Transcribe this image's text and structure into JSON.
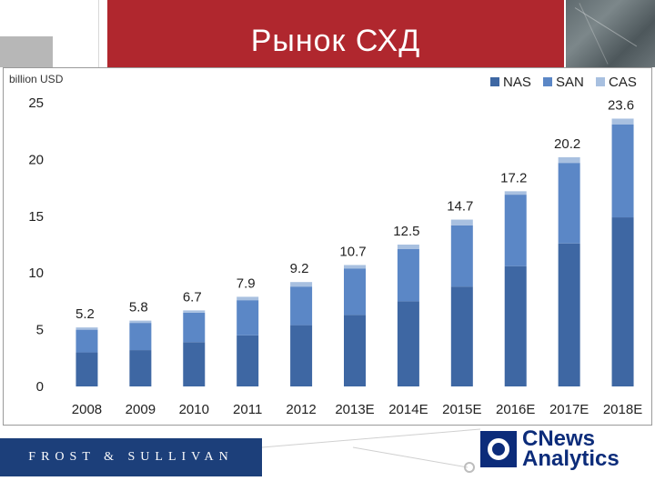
{
  "slide": {
    "title": "Рынок СХД",
    "footer_left": "FROST & SULLIVAN",
    "footer_right_line1": "CNews",
    "footer_right_line2": "Analytics"
  },
  "colors": {
    "title_band": "#b0272e",
    "frost_band": "#1c3f7a",
    "nas": "#3e67a3",
    "san": "#5b87c6",
    "cas": "#a8c0e0"
  },
  "chart_data": {
    "type": "bar",
    "stacked": true,
    "title": "",
    "units_label": "billion USD",
    "xlabel": "",
    "ylabel": "",
    "ylim": [
      0,
      25
    ],
    "yticks": [
      0,
      5,
      10,
      15,
      20,
      25
    ],
    "categories": [
      "2008",
      "2009",
      "2010",
      "2011",
      "2012",
      "2013Е",
      "2014Е",
      "2015Е",
      "2016Е",
      "2017Е",
      "2018Е"
    ],
    "series": [
      {
        "name": "NAS",
        "color": "#3e67a3",
        "values": [
          3.0,
          3.2,
          3.9,
          4.5,
          5.4,
          6.3,
          7.5,
          8.8,
          10.6,
          12.6,
          14.9
        ]
      },
      {
        "name": "SAN",
        "color": "#5b87c6",
        "values": [
          2.0,
          2.4,
          2.6,
          3.1,
          3.4,
          4.1,
          4.6,
          5.4,
          6.3,
          7.1,
          8.2
        ]
      },
      {
        "name": "CAS",
        "color": "#a8c0e0",
        "values": [
          0.2,
          0.2,
          0.2,
          0.3,
          0.4,
          0.3,
          0.4,
          0.5,
          0.3,
          0.5,
          0.5
        ]
      }
    ],
    "totals": [
      "5.2",
      "5.8",
      "6.7",
      "7.9",
      "9.2",
      "10.7",
      "12.5",
      "14.7",
      "17.2",
      "20.2",
      "23.6"
    ],
    "legend": {
      "placement": "top-right"
    },
    "grid": true
  }
}
